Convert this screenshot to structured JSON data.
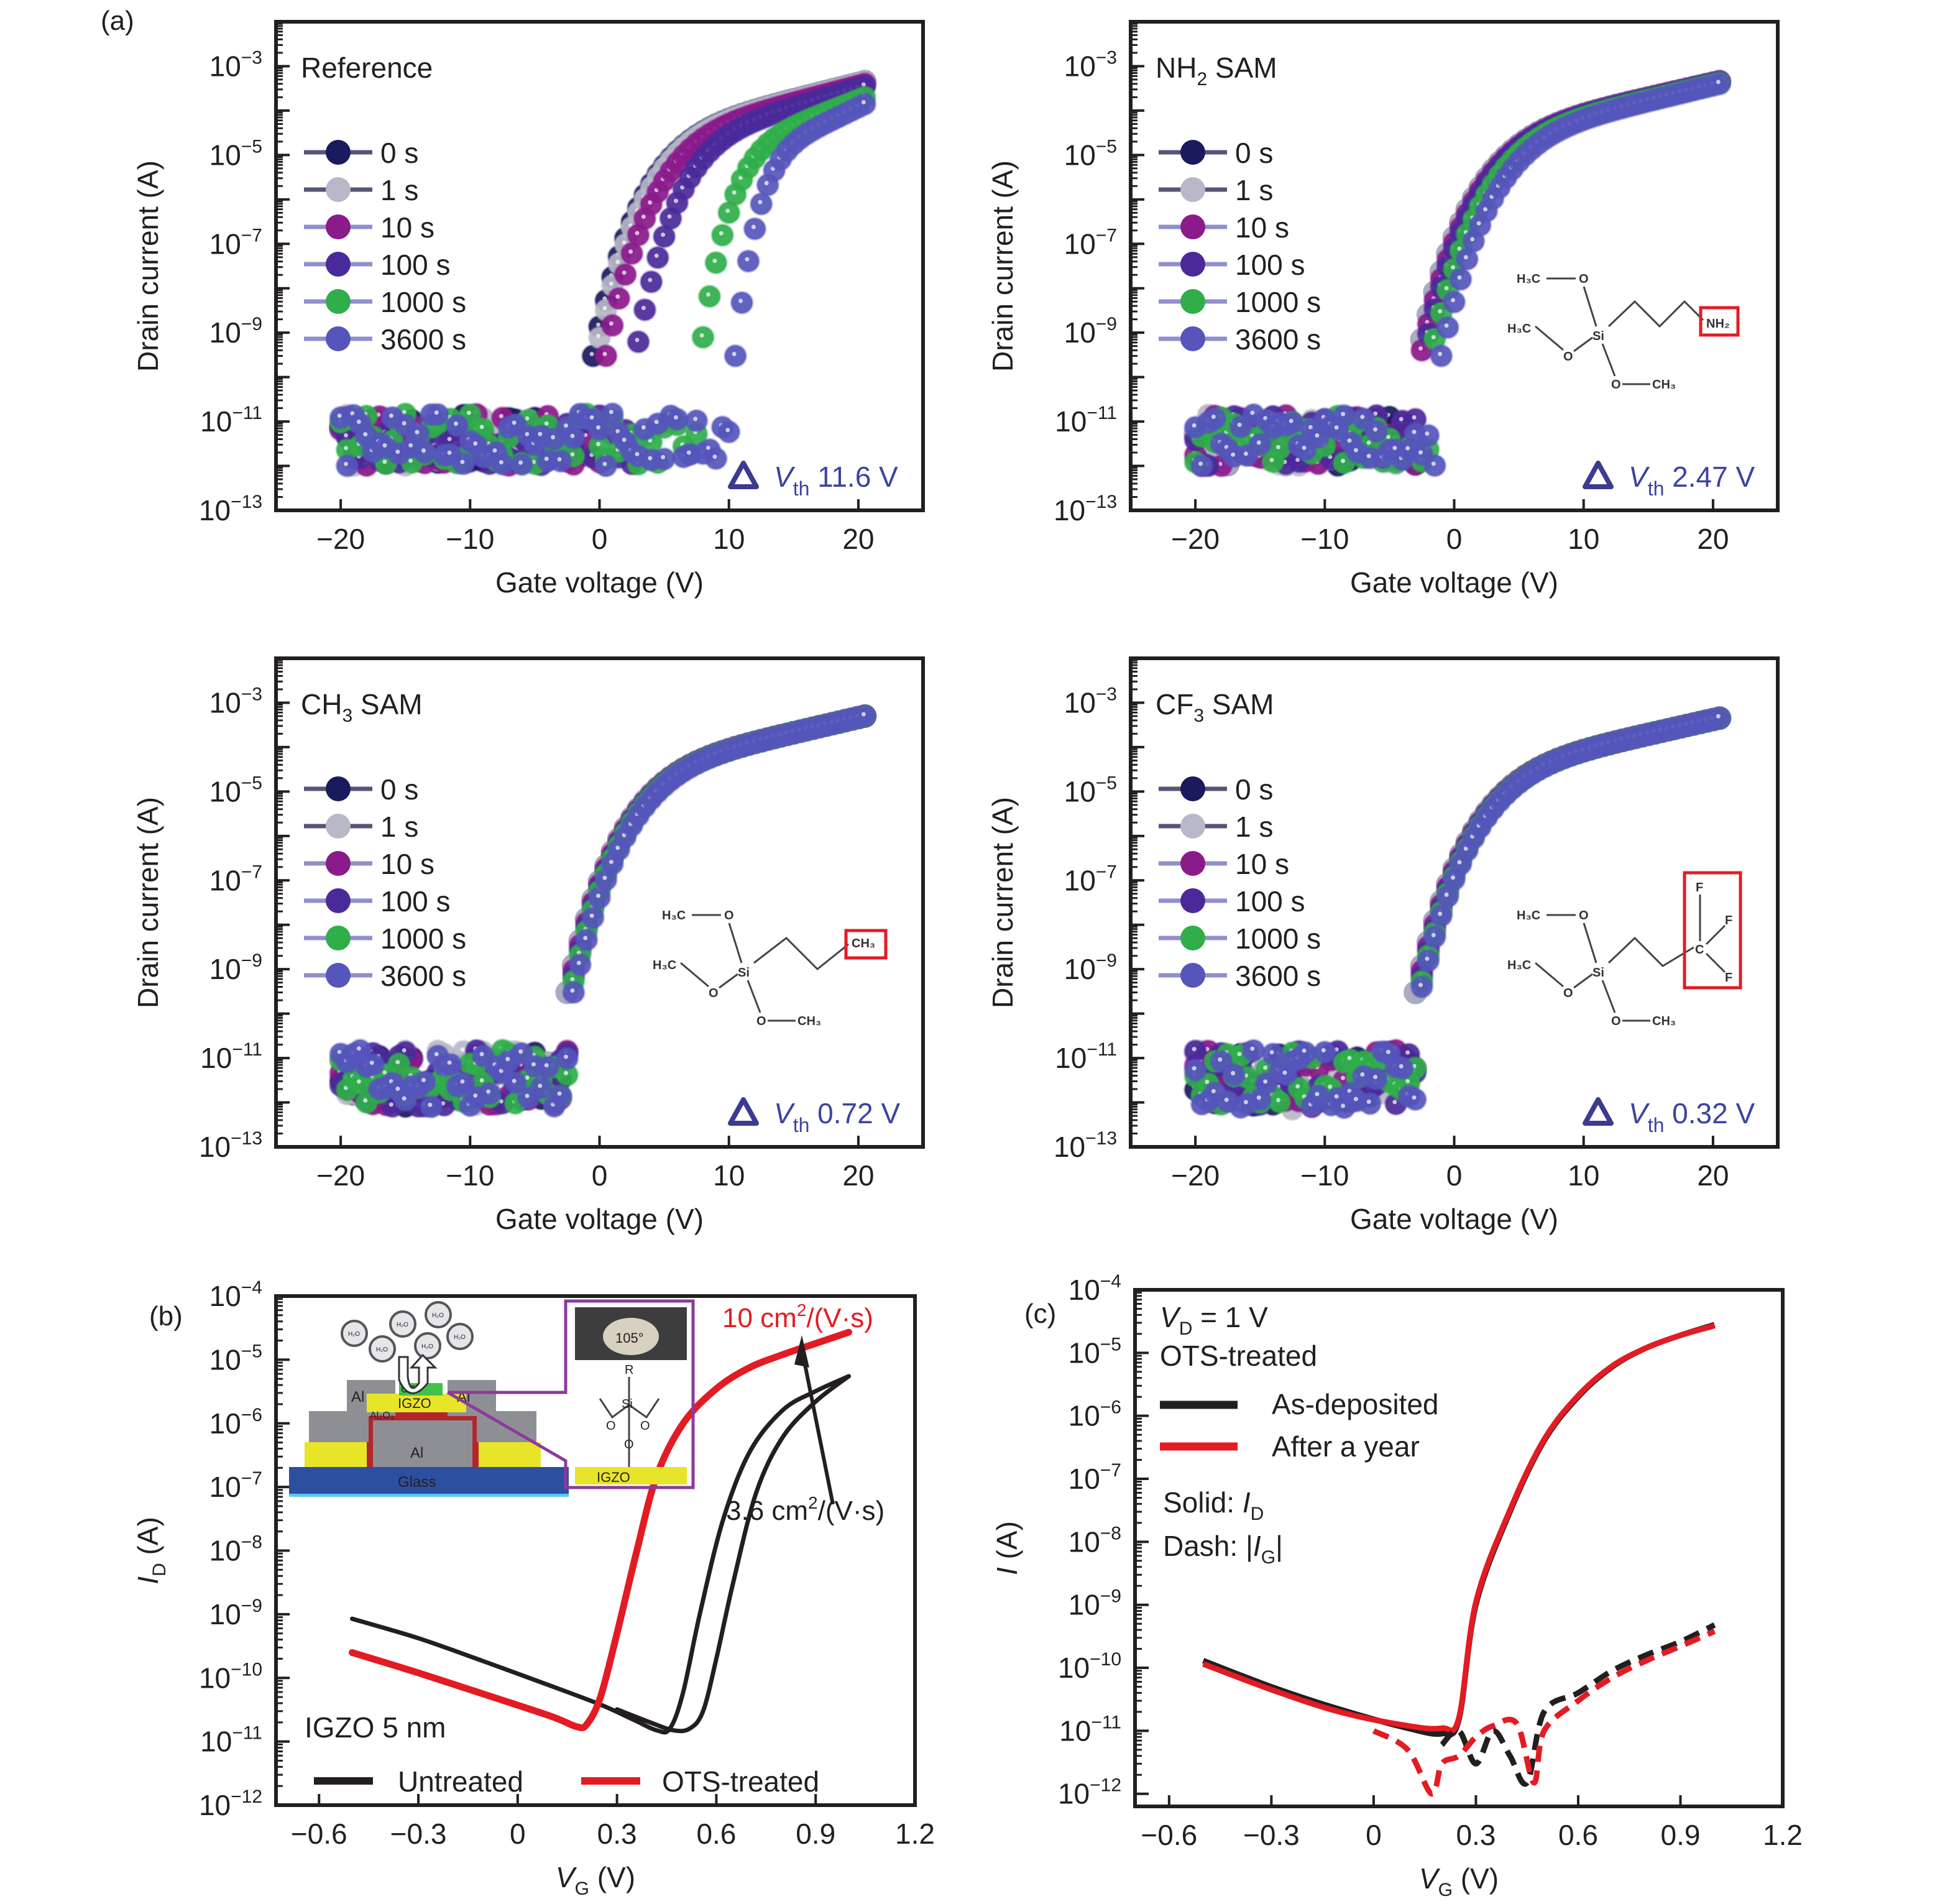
{
  "figure_labels": {
    "a": "(a)",
    "b": "(b)",
    "c": "(c)"
  },
  "chart_data": [
    {
      "id": "a-reference",
      "type": "scatter",
      "yscale": "log",
      "title": "Reference",
      "xlabel": "Gate voltage (V)",
      "ylabel": "Drain current (A)",
      "xlim": [
        -25,
        25
      ],
      "ylim_exp": [
        -13,
        -2
      ],
      "xticks": [
        -20,
        -10,
        0,
        10,
        20
      ],
      "xtick_labels": [
        "−20",
        "−10",
        "0",
        "10",
        "20"
      ],
      "yticks_exp": [
        -3,
        -5,
        -7,
        -9,
        -11,
        -13
      ],
      "legend": [
        "0 s",
        "1 s",
        "10 s",
        "100 s",
        "1000 s",
        "3600 s"
      ],
      "legend_placement": "left-middle",
      "series_colors": [
        "#1a1a5e",
        "#b8b8c8",
        "#8b1a8b",
        "#4a2a9a",
        "#2fae4a",
        "#5555bb"
      ],
      "annotation": {
        "prefix": "△",
        "label": "V",
        "sub": "th",
        "value": "11.6 V"
      },
      "series": [
        {
          "name": "0 s",
          "von": -0.5,
          "ion": 0.00045
        },
        {
          "name": "1 s",
          "von": -0.3,
          "ion": 0.00045
        },
        {
          "name": "10 s",
          "von": 0.5,
          "ion": 0.0004
        },
        {
          "name": "100 s",
          "von": 2.8,
          "ion": 0.00035
        },
        {
          "name": "1000 s",
          "von": 7.8,
          "ion": 0.0002
        },
        {
          "name": "3600 s",
          "von": 10.5,
          "ion": 0.00014
        }
      ],
      "off_current": [
        1e-12,
        1.5e-11
      ]
    },
    {
      "id": "a-nh2",
      "type": "scatter",
      "yscale": "log",
      "title": "NH",
      "title_sub": "2",
      "title_suffix": " SAM",
      "xlabel": "Gate voltage (V)",
      "ylabel": "Drain current (A)",
      "xlim": [
        -25,
        25
      ],
      "ylim_exp": [
        -13,
        -2
      ],
      "xticks": [
        -20,
        -10,
        0,
        10,
        20
      ],
      "xtick_labels": [
        "−20",
        "−10",
        "0",
        "10",
        "20"
      ],
      "yticks_exp": [
        -3,
        -5,
        -7,
        -9,
        -11,
        -13
      ],
      "legend": [
        "0 s",
        "1 s",
        "10 s",
        "100 s",
        "1000 s",
        "3600 s"
      ],
      "legend_placement": "left-middle",
      "series_colors": [
        "#1a1a5e",
        "#b8b8c8",
        "#8b1a8b",
        "#4a2a9a",
        "#2fae4a",
        "#5555bb"
      ],
      "annotation": {
        "prefix": "△",
        "label": "V",
        "sub": "th",
        "value": "2.47 V"
      },
      "molecule": {
        "groups": [
          "H3C",
          "O",
          "H3C",
          "O",
          "Si",
          "O",
          "CH3",
          "NH2"
        ],
        "highlight": "NH2"
      },
      "series": [
        {
          "name": "0 s",
          "von": -2.8,
          "ion": 0.00045
        },
        {
          "name": "1 s",
          "von": -2.8,
          "ion": 0.00045
        },
        {
          "name": "10 s",
          "von": -2.6,
          "ion": 0.00045
        },
        {
          "name": "100 s",
          "von": -2.4,
          "ion": 0.00045
        },
        {
          "name": "1000 s",
          "von": -1.8,
          "ion": 0.00042
        },
        {
          "name": "3600 s",
          "von": -1.0,
          "ion": 0.0004
        }
      ],
      "off_current": [
        1e-12,
        1.5e-11
      ]
    },
    {
      "id": "a-ch3",
      "type": "scatter",
      "yscale": "log",
      "title": "CH",
      "title_sub": "3",
      "title_suffix": " SAM",
      "xlabel": "Gate voltage (V)",
      "ylabel": "Drain current (A)",
      "xlim": [
        -25,
        25
      ],
      "ylim_exp": [
        -13,
        -2
      ],
      "xticks": [
        -20,
        -10,
        0,
        10,
        20
      ],
      "xtick_labels": [
        "−20",
        "−10",
        "0",
        "10",
        "20"
      ],
      "yticks_exp": [
        -3,
        -5,
        -7,
        -9,
        -11,
        -13
      ],
      "legend": [
        "0 s",
        "1 s",
        "10 s",
        "100 s",
        "1000 s",
        "3600 s"
      ],
      "legend_placement": "left-middle",
      "series_colors": [
        "#1a1a5e",
        "#b8b8c8",
        "#8b1a8b",
        "#4a2a9a",
        "#2fae4a",
        "#5555bb"
      ],
      "annotation": {
        "prefix": "△",
        "label": "V",
        "sub": "th",
        "value": "0.72 V"
      },
      "molecule": {
        "groups": [
          "H3C",
          "O",
          "H3C",
          "O",
          "Si",
          "O",
          "CH3",
          "CH3"
        ],
        "highlight": "CH3"
      },
      "series": [
        {
          "name": "0 s",
          "von": -2.5,
          "ion": 0.0005
        },
        {
          "name": "1 s",
          "von": -2.5,
          "ion": 0.0005
        },
        {
          "name": "10 s",
          "von": -2.4,
          "ion": 0.0005
        },
        {
          "name": "100 s",
          "von": -2.3,
          "ion": 0.0005
        },
        {
          "name": "1000 s",
          "von": -2.2,
          "ion": 0.0005
        },
        {
          "name": "3600 s",
          "von": -2.0,
          "ion": 0.0005
        }
      ],
      "off_current": [
        8e-13,
        1.5e-11
      ]
    },
    {
      "id": "a-cf3",
      "type": "scatter",
      "yscale": "log",
      "title": "CF",
      "title_sub": "3",
      "title_suffix": " SAM",
      "xlabel": "Gate voltage (V)",
      "ylabel": "Drain current (A)",
      "xlim": [
        -25,
        25
      ],
      "ylim_exp": [
        -13,
        -2
      ],
      "xticks": [
        -20,
        -10,
        0,
        10,
        20
      ],
      "xtick_labels": [
        "−20",
        "−10",
        "0",
        "10",
        "20"
      ],
      "yticks_exp": [
        -3,
        -5,
        -7,
        -9,
        -11,
        -13
      ],
      "legend": [
        "0 s",
        "1 s",
        "10 s",
        "100 s",
        "1000 s",
        "3600 s"
      ],
      "legend_placement": "left-middle",
      "series_colors": [
        "#1a1a5e",
        "#b8b8c8",
        "#8b1a8b",
        "#4a2a9a",
        "#2fae4a",
        "#5555bb"
      ],
      "annotation": {
        "prefix": "△",
        "label": "V",
        "sub": "th",
        "value": "0.32 V"
      },
      "molecule": {
        "groups": [
          "H3C",
          "O",
          "H3C",
          "O",
          "Si",
          "O",
          "CH3",
          "C",
          "F",
          "F",
          "F"
        ],
        "highlight": "CF3"
      },
      "series": [
        {
          "name": "0 s",
          "von": -3.0,
          "ion": 0.00045
        },
        {
          "name": "1 s",
          "von": -3.0,
          "ion": 0.00045
        },
        {
          "name": "10 s",
          "von": -2.9,
          "ion": 0.00045
        },
        {
          "name": "100 s",
          "von": -2.8,
          "ion": 0.00045
        },
        {
          "name": "1000 s",
          "von": -2.7,
          "ion": 0.00045
        },
        {
          "name": "3600 s",
          "von": -2.6,
          "ion": 0.00045
        }
      ],
      "off_current": [
        7e-13,
        1.5e-11
      ]
    },
    {
      "id": "b",
      "type": "line",
      "yscale": "log",
      "xlabel": "V",
      "xlabel_sub": "G",
      "xlabel_suffix": " (V)",
      "ylabel": "I",
      "ylabel_sub": "D",
      "ylabel_suffix": " (A)",
      "xlim": [
        -0.73,
        1.2
      ],
      "ylim_exp": [
        -12,
        -4
      ],
      "xticks": [
        -0.6,
        -0.3,
        0,
        0.3,
        0.6,
        0.9,
        1.2
      ],
      "xtick_labels": [
        "−0.6",
        "−0.3",
        "0",
        "0.3",
        "0.6",
        "0.9",
        "1.2"
      ],
      "yticks_exp": [
        -4,
        -5,
        -6,
        -7,
        -8,
        -9,
        -10,
        -11,
        -12
      ],
      "text_label": "IGZO 5 nm",
      "legend": [
        "Untreated",
        "OTS-treated"
      ],
      "legend_placement": "bottom-left",
      "annotations": [
        {
          "text": "10 cm",
          "sup": "2",
          "suffix": "/(V·s)",
          "color": "#e31b23"
        },
        {
          "text": "3.6 cm",
          "sup": "2",
          "suffix": "/(V·s)",
          "color": "#231f20"
        }
      ],
      "inset": {
        "layers": [
          "Glass",
          "Al",
          "Al2O3",
          "IGZO",
          "OTS",
          "Al",
          "Al"
        ],
        "molecules": "H2O",
        "contact_angle": "105°",
        "chain": [
          "R",
          "Si",
          "O",
          "O",
          "O",
          "IGZO"
        ]
      },
      "series": [
        {
          "name": "Untreated (sweep 1)",
          "color": "#231f20",
          "x": [
            -0.5,
            -0.3,
            -0.1,
            0.1,
            0.25,
            0.35,
            0.42,
            0.46,
            0.5,
            0.55,
            0.62,
            0.7,
            0.8,
            0.9,
            1.0
          ],
          "y": [
            8.5e-10,
            4.2e-10,
            1.8e-10,
            7.5e-11,
            3.8e-11,
            2.2e-11,
            1.5e-11,
            1.6e-11,
            6e-11,
            1e-09,
            3e-08,
            3.5e-07,
            1.6e-06,
            3.2e-06,
            5.5e-06
          ]
        },
        {
          "name": "Untreated (sweep 2)",
          "color": "#231f20",
          "x": [
            0.3,
            0.4,
            0.47,
            0.52,
            0.56,
            0.6,
            0.65,
            0.72,
            0.8,
            0.9,
            1.0
          ],
          "y": [
            3.2e-11,
            2e-11,
            1.5e-11,
            1.6e-11,
            3e-11,
            2e-10,
            3e-09,
            8e-08,
            6e-07,
            2.2e-06,
            5.5e-06
          ]
        },
        {
          "name": "OTS-treated",
          "color": "#e31b23",
          "x": [
            -0.5,
            -0.3,
            -0.1,
            0.1,
            0.18,
            0.21,
            0.25,
            0.3,
            0.36,
            0.42,
            0.5,
            0.6,
            0.7,
            0.8,
            0.9,
            1.0
          ],
          "y": [
            2.5e-10,
            1.2e-10,
            5.5e-11,
            2.5e-11,
            1.7e-11,
            1.9e-11,
            5e-11,
            5e-10,
            1e-08,
            1.5e-07,
            1e-06,
            3.5e-06,
            7.5e-06,
            1.2e-05,
            1.8e-05,
            2.7e-05
          ]
        }
      ]
    },
    {
      "id": "c",
      "type": "line",
      "yscale": "log",
      "xlabel": "V",
      "xlabel_sub": "G",
      "xlabel_suffix": " (V)",
      "ylabel": "I",
      "ylabel_suffix": " (A)",
      "xlim": [
        -0.7,
        1.2
      ],
      "ylim_exp": [
        -12.2,
        -4
      ],
      "xticks": [
        -0.6,
        -0.3,
        0,
        0.3,
        0.6,
        0.9,
        1.2
      ],
      "xtick_labels": [
        "−0.6",
        "−0.3",
        "0",
        "0.3",
        "0.6",
        "0.9",
        "1.2"
      ],
      "yticks_exp": [
        -4,
        -5,
        -6,
        -7,
        -8,
        -9,
        -10,
        -11,
        -12
      ],
      "text_lines": [
        {
          "main": "V",
          "sub": "D",
          "rest": " = 1 V"
        },
        {
          "main": "OTS-treated"
        },
        {
          "main": "Solid: ",
          "italic": "I",
          "sub": "D"
        },
        {
          "main": "Dash: |",
          "italic": "I",
          "sub": "G",
          "rest": "|"
        }
      ],
      "legend": [
        "As-deposited",
        "After a year"
      ],
      "legend_placement": "top-left",
      "series": [
        {
          "name": "As-deposited I_D",
          "color": "#231f20",
          "dash": false,
          "x": [
            -0.5,
            -0.3,
            -0.1,
            0.1,
            0.2,
            0.25,
            0.3,
            0.4,
            0.5,
            0.6,
            0.7,
            0.8,
            0.9,
            1.0
          ],
          "y": [
            1.3e-10,
            5e-11,
            2.2e-11,
            1.1e-11,
            9e-12,
            1.5e-11,
            1e-09,
            3e-08,
            4e-07,
            2e-06,
            6e-06,
            1.2e-05,
            1.9e-05,
            2.8e-05
          ]
        },
        {
          "name": "After a year I_D",
          "color": "#e31b23",
          "dash": false,
          "x": [
            -0.5,
            -0.3,
            -0.1,
            0.1,
            0.2,
            0.25,
            0.3,
            0.4,
            0.5,
            0.6,
            0.7,
            0.8,
            0.9,
            1.0
          ],
          "y": [
            1.15e-10,
            4.5e-11,
            2e-11,
            1.2e-11,
            1.1e-11,
            1.6e-11,
            1.1e-09,
            3.2e-08,
            4.2e-07,
            2.1e-06,
            6.2e-06,
            1.2e-05,
            1.9e-05,
            2.7e-05
          ]
        },
        {
          "name": "As-deposited |I_G|",
          "color": "#231f20",
          "dash": true,
          "x": [
            0.2,
            0.25,
            0.3,
            0.35,
            0.4,
            0.45,
            0.5,
            0.6,
            0.7,
            0.8,
            0.9,
            1.0
          ],
          "y": [
            6e-12,
            1e-11,
            3e-12,
            1e-11,
            4e-12,
            1.5e-12,
            2e-11,
            4e-11,
            9e-11,
            1.6e-10,
            2.6e-10,
            4.8e-10
          ]
        },
        {
          "name": "After a year |I_G|",
          "color": "#e31b23",
          "dash": true,
          "x": [
            0.0,
            0.1,
            0.17,
            0.2,
            0.25,
            0.3,
            0.35,
            0.42,
            0.47,
            0.5,
            0.6,
            0.7,
            0.8,
            0.9,
            1.0
          ],
          "y": [
            1e-11,
            5e-12,
            1e-12,
            3e-12,
            4e-12,
            8e-12,
            1.2e-11,
            1.3e-11,
            1.5e-12,
            1e-11,
            3e-11,
            7e-11,
            1.3e-10,
            2.2e-10,
            3.8e-10
          ]
        }
      ]
    }
  ]
}
